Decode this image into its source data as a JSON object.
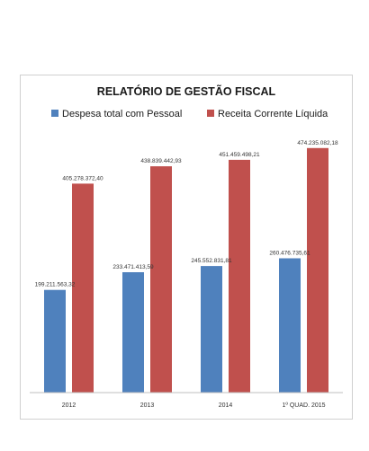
{
  "chart_data": {
    "type": "bar",
    "title": "RELATÓRIO DE GESTÃO FISCAL",
    "categories": [
      "2012",
      "2013",
      "2014",
      "1º QUAD. 2015"
    ],
    "series": [
      {
        "name": "Despesa total com Pessoal",
        "color": "#4f81bd",
        "values": [
          199211563.32,
          233471413.59,
          245552831.81,
          260476735.61
        ],
        "labels": [
          "199.211.563,32",
          "233.471.413,59",
          "245.552.831,81",
          "260.476.735,61"
        ]
      },
      {
        "name": "Receita Corrente Líquida",
        "color": "#c0504d",
        "values": [
          405278372.4,
          438839442.93,
          451459498.21,
          474235082.18
        ],
        "labels": [
          "405.278.372,40",
          "438.839.442,93",
          "451.459.498,21",
          "474.235.082,18"
        ]
      }
    ],
    "ylim": [
      0,
      500000000
    ],
    "legend_position": "top",
    "grid": false
  }
}
